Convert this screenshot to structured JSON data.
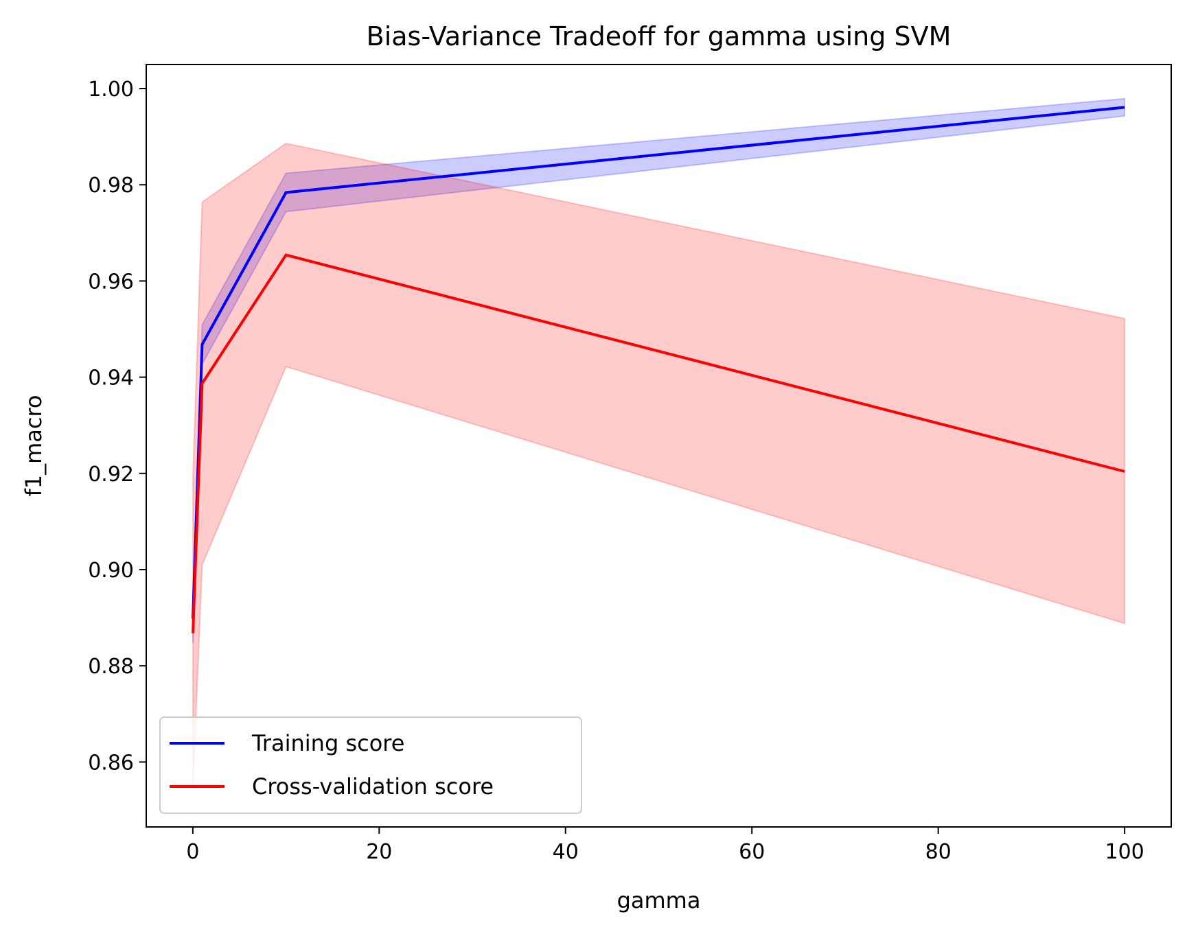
{
  "chart_data": {
    "type": "line",
    "title": "Bias-Variance Tradeoff for gamma using SVM",
    "xlabel": "gamma",
    "ylabel": "f1_macro",
    "xlim": [
      -5,
      105
    ],
    "ylim": [
      0.8465,
      1.005
    ],
    "xticks": [
      0,
      20,
      40,
      60,
      80,
      100
    ],
    "xtick_labels": [
      "0",
      "20",
      "40",
      "60",
      "80",
      "100"
    ],
    "yticks": [
      0.86,
      0.88,
      0.9,
      0.92,
      0.94,
      0.96,
      0.98,
      1.0
    ],
    "ytick_labels": [
      "0.86",
      "0.88",
      "0.90",
      "0.92",
      "0.94",
      "0.96",
      "0.98",
      "1.00"
    ],
    "grid": false,
    "legend_position": "lower-left",
    "x": [
      0.01,
      1,
      10,
      100
    ],
    "series": [
      {
        "name": "Training score",
        "color": "#0000ff",
        "band_color": "#0000ff",
        "values": [
          0.8898,
          0.9468,
          0.9784,
          0.9961
        ],
        "lower": [
          0.8848,
          0.9427,
          0.9744,
          0.9943
        ],
        "upper": [
          0.8948,
          0.9509,
          0.9824,
          0.9979
        ]
      },
      {
        "name": "Cross-validation score",
        "color": "#ff0000",
        "band_color": "#ff0000",
        "values": [
          0.8868,
          0.9387,
          0.9654,
          0.9204
        ],
        "lower": [
          0.8544,
          0.901,
          0.9422,
          0.8888
        ],
        "upper": [
          0.9192,
          0.9764,
          0.9886,
          0.9522
        ]
      }
    ]
  }
}
